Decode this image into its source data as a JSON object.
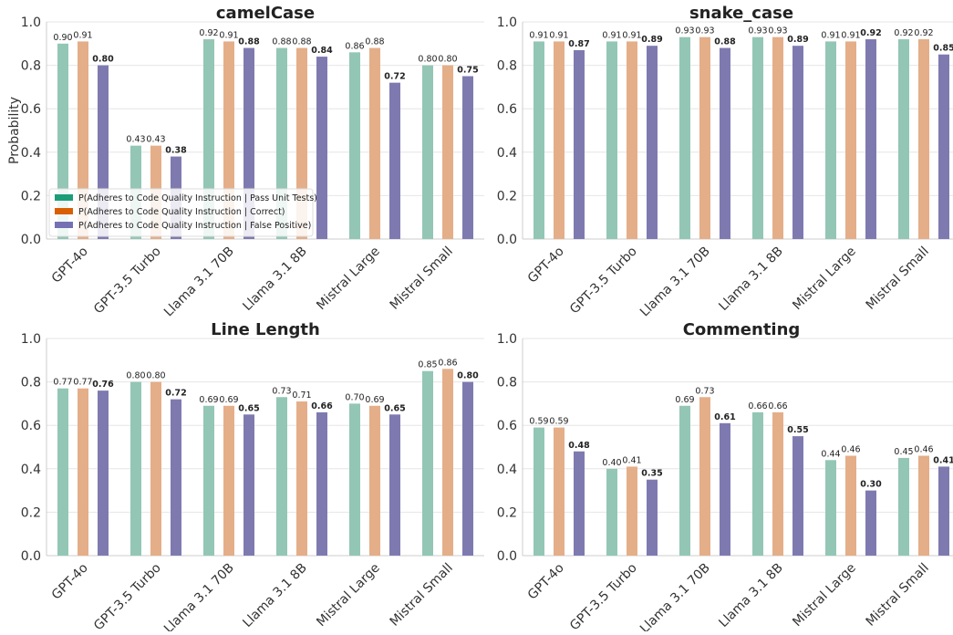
{
  "figure": {
    "ylabel": "Probability",
    "legend": {
      "placement": "lower-left of first panel",
      "entries": [
        {
          "label": "P(Adheres to Code Quality Instruction | Pass Unit Tests)",
          "color": "#1b9e77"
        },
        {
          "label": "P(Adheres to Code Quality Instruction | Correct)",
          "color": "#d95f02"
        },
        {
          "label": "P(Adheres to Code Quality Instruction | False Positive)",
          "color": "#7570b3"
        }
      ]
    },
    "bar_colors": [
      "#93c6b5",
      "#e4ae89",
      "#7e7ab0"
    ],
    "grid": true
  },
  "chart_data": [
    {
      "type": "bar",
      "title": "camelCase",
      "ylabel": "Probability",
      "ylim": [
        0,
        1.0
      ],
      "yticks": [
        "0.0",
        "0.2",
        "0.4",
        "0.6",
        "0.8",
        "1.0"
      ],
      "categories": [
        "GPT-4o",
        "GPT-3.5 Turbo",
        "Llama 3.1 70B",
        "Llama 3.1 8B",
        "Mistral Large",
        "Mistral Small"
      ],
      "series": [
        {
          "name": "P(Adheres to Code Quality Instruction | Pass Unit Tests)",
          "values": [
            0.9,
            0.43,
            0.92,
            0.88,
            0.86,
            0.8
          ],
          "labels": [
            "0.90",
            "0.43",
            "0.92",
            "0.88",
            "0.86",
            "0.80"
          ]
        },
        {
          "name": "P(Adheres to Code Quality Instruction | Correct)",
          "values": [
            0.91,
            0.43,
            0.91,
            0.88,
            0.88,
            0.8
          ],
          "labels": [
            "0.91",
            "0.43",
            "0.91",
            "0.88",
            "0.88",
            "0.80"
          ]
        },
        {
          "name": "P(Adheres to Code Quality Instruction | False Positive)",
          "values": [
            0.8,
            0.38,
            0.88,
            0.84,
            0.72,
            0.75
          ],
          "labels": [
            "0.80",
            "0.38",
            "0.88",
            "0.84",
            "0.72",
            "0.75"
          ]
        }
      ]
    },
    {
      "type": "bar",
      "title": "snake_case",
      "ylim": [
        0,
        1.0
      ],
      "yticks": [
        "0.0",
        "0.2",
        "0.4",
        "0.6",
        "0.8",
        "1.0"
      ],
      "categories": [
        "GPT-4o",
        "GPT-3.5 Turbo",
        "Llama 3.1 70B",
        "Llama 3.1 8B",
        "Mistral Large",
        "Mistral Small"
      ],
      "series": [
        {
          "name": "P(Adheres to Code Quality Instruction | Pass Unit Tests)",
          "values": [
            0.91,
            0.91,
            0.93,
            0.93,
            0.91,
            0.92
          ],
          "labels": [
            "0.91",
            "0.91",
            "0.93",
            "0.93",
            "0.91",
            "0.92"
          ]
        },
        {
          "name": "P(Adheres to Code Quality Instruction | Correct)",
          "values": [
            0.91,
            0.91,
            0.93,
            0.93,
            0.91,
            0.92
          ],
          "labels": [
            "0.91",
            "0.91",
            "0.93",
            "0.93",
            "0.91",
            "0.92"
          ]
        },
        {
          "name": "P(Adheres to Code Quality Instruction | False Positive)",
          "values": [
            0.87,
            0.89,
            0.88,
            0.89,
            0.92,
            0.85
          ],
          "labels": [
            "0.87",
            "0.89",
            "0.88",
            "0.89",
            "0.92",
            "0.85"
          ]
        }
      ]
    },
    {
      "type": "bar",
      "title": "Line Length",
      "ylim": [
        0,
        1.0
      ],
      "yticks": [
        "0.0",
        "0.2",
        "0.4",
        "0.6",
        "0.8",
        "1.0"
      ],
      "categories": [
        "GPT-4o",
        "GPT-3.5 Turbo",
        "Llama 3.1 70B",
        "Llama 3.1 8B",
        "Mistral Large",
        "Mistral Small"
      ],
      "series": [
        {
          "name": "P(Adheres to Code Quality Instruction | Pass Unit Tests)",
          "values": [
            0.77,
            0.8,
            0.69,
            0.73,
            0.7,
            0.85
          ],
          "labels": [
            "0.77",
            "0.80",
            "0.69",
            "0.73",
            "0.70",
            "0.85"
          ]
        },
        {
          "name": "P(Adheres to Code Quality Instruction | Correct)",
          "values": [
            0.77,
            0.8,
            0.69,
            0.71,
            0.69,
            0.86
          ],
          "labels": [
            "0.77",
            "0.80",
            "0.69",
            "0.71",
            "0.69",
            "0.86"
          ]
        },
        {
          "name": "P(Adheres to Code Quality Instruction | False Positive)",
          "values": [
            0.76,
            0.72,
            0.65,
            0.66,
            0.65,
            0.8
          ],
          "labels": [
            "0.76",
            "0.72",
            "0.65",
            "0.66",
            "0.65",
            "0.80"
          ]
        }
      ]
    },
    {
      "type": "bar",
      "title": "Commenting",
      "ylim": [
        0,
        1.0
      ],
      "yticks": [
        "0.0",
        "0.2",
        "0.4",
        "0.6",
        "0.8",
        "1.0"
      ],
      "categories": [
        "GPT-4o",
        "GPT-3.5 Turbo",
        "Llama 3.1 70B",
        "Llama 3.1 8B",
        "Mistral Large",
        "Mistral Small"
      ],
      "series": [
        {
          "name": "P(Adheres to Code Quality Instruction | Pass Unit Tests)",
          "values": [
            0.59,
            0.4,
            0.69,
            0.66,
            0.44,
            0.45
          ],
          "labels": [
            "0.59",
            "0.40",
            "0.69",
            "0.66",
            "0.44",
            "0.45"
          ]
        },
        {
          "name": "P(Adheres to Code Quality Instruction | Correct)",
          "values": [
            0.59,
            0.41,
            0.73,
            0.66,
            0.46,
            0.46
          ],
          "labels": [
            "0.59",
            "0.41",
            "0.73",
            "0.66",
            "0.46",
            "0.46"
          ]
        },
        {
          "name": "P(Adheres to Code Quality Instruction | False Positive)",
          "values": [
            0.48,
            0.35,
            0.61,
            0.55,
            0.3,
            0.41
          ],
          "labels": [
            "0.48",
            "0.35",
            "0.61",
            "0.55",
            "0.30",
            "0.41"
          ]
        }
      ]
    }
  ]
}
